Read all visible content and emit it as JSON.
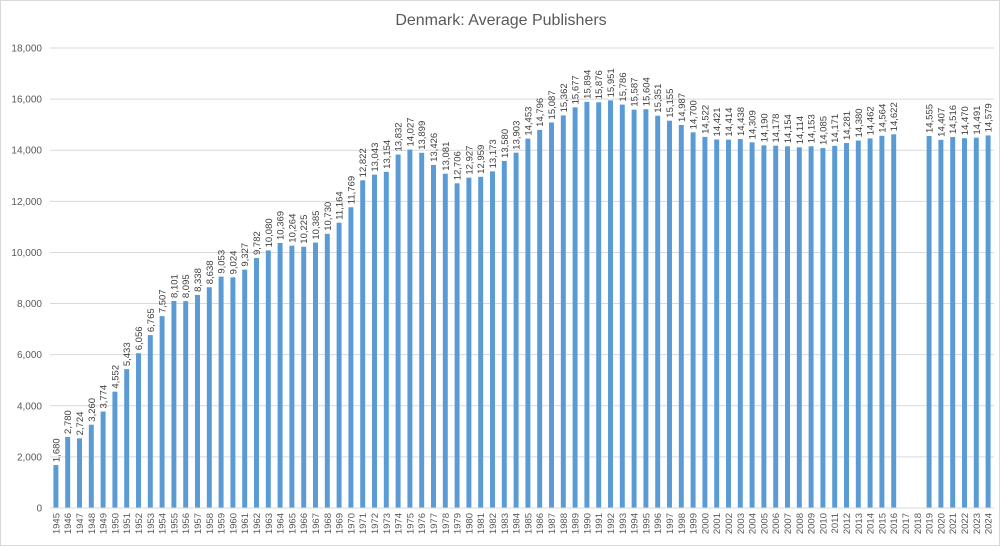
{
  "chart_data": {
    "type": "bar",
    "title": "Denmark: Average Publishers",
    "xlabel": "",
    "ylabel": "",
    "ylim": [
      0,
      18000
    ],
    "yticks": [
      0,
      2000,
      4000,
      6000,
      8000,
      10000,
      12000,
      14000,
      16000,
      18000
    ],
    "ytick_labels": [
      "0",
      "2,000",
      "4,000",
      "6,000",
      "8,000",
      "10,000",
      "12,000",
      "14,000",
      "16,000",
      "18,000"
    ],
    "grid": true,
    "bar_color": "#5b9bd5",
    "categories": [
      "1945",
      "1946",
      "1947",
      "1948",
      "1949",
      "1950",
      "1951",
      "1952",
      "1953",
      "1954",
      "1955",
      "1956",
      "1957",
      "1958",
      "1959",
      "1960",
      "1961",
      "1962",
      "1963",
      "1964",
      "1965",
      "1966",
      "1967",
      "1968",
      "1969",
      "1970",
      "1971",
      "1972",
      "1973",
      "1974",
      "1975",
      "1976",
      "1977",
      "1978",
      "1979",
      "1980",
      "1981",
      "1982",
      "1983",
      "1984",
      "1985",
      "1986",
      "1987",
      "1988",
      "1989",
      "1990",
      "1991",
      "1992",
      "1993",
      "1994",
      "1995",
      "1996",
      "1997",
      "1998",
      "1999",
      "2000",
      "2001",
      "2002",
      "2003",
      "2004",
      "2005",
      "2006",
      "2007",
      "2008",
      "2009",
      "2010",
      "2011",
      "2012",
      "2013",
      "2014",
      "2015",
      "2016",
      "2017",
      "2018",
      "2019",
      "2020",
      "2021",
      "2022",
      "2023",
      "2024"
    ],
    "values": [
      1680,
      2780,
      2724,
      3260,
      3774,
      4552,
      5433,
      6056,
      6765,
      7507,
      8101,
      8095,
      8338,
      8638,
      9053,
      9024,
      9327,
      9782,
      10080,
      10369,
      10264,
      10225,
      10385,
      10730,
      11164,
      11769,
      12822,
      13043,
      13154,
      13832,
      14027,
      13899,
      13426,
      13081,
      12706,
      12927,
      12959,
      13173,
      13580,
      13903,
      14453,
      14796,
      15087,
      15362,
      15677,
      15894,
      15876,
      15951,
      15786,
      15587,
      15604,
      15351,
      15155,
      14987,
      14700,
      14522,
      14421,
      14414,
      14438,
      14309,
      14190,
      14178,
      14154,
      14114,
      14153,
      14085,
      14171,
      14281,
      14380,
      14462,
      14564,
      14622,
      null,
      null,
      14555,
      14407,
      14516,
      14470,
      14491,
      14579
    ],
    "data_labels": [
      "1,680",
      "2,780",
      "2,724",
      "3,260",
      "3,774",
      "4,552",
      "5,433",
      "6,056",
      "6,765",
      "7,507",
      "8,101",
      "8,095",
      "8,338",
      "8,638",
      "9,053",
      "9,024",
      "9,327",
      "9,782",
      "10,080",
      "10,369",
      "10,264",
      "10,225",
      "10,385",
      "10,730",
      "11,164",
      "11,769",
      "12,822",
      "13,043",
      "13,154",
      "13,832",
      "14,027",
      "13,899",
      "13,426",
      "13,081",
      "12,706",
      "12,927",
      "12,959",
      "13,173",
      "13,580",
      "13,903",
      "14,453",
      "14,796",
      "15,087",
      "15,362",
      "15,677",
      "15,894",
      "15,876",
      "15,951",
      "15,786",
      "15,587",
      "15,604",
      "15,351",
      "15,155",
      "14,987",
      "14,700",
      "14,522",
      "14,421",
      "14,414",
      "14,438",
      "14,309",
      "14,190",
      "14,178",
      "14,154",
      "14,114",
      "14,153",
      "14,085",
      "14,171",
      "14,281",
      "14,380",
      "14,462",
      "14,564",
      "14,622",
      null,
      null,
      "14,555",
      "14,407",
      "14,516",
      "14,470",
      "14,491",
      "14,579"
    ]
  }
}
